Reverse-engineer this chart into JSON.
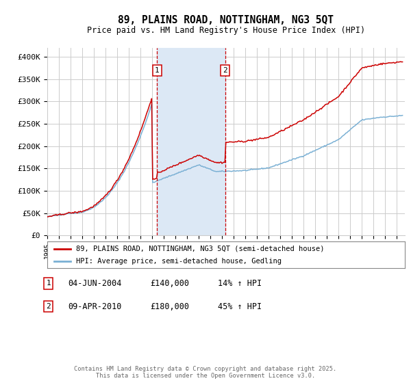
{
  "title": "89, PLAINS ROAD, NOTTINGHAM, NG3 5QT",
  "subtitle": "Price paid vs. HM Land Registry's House Price Index (HPI)",
  "ylabel_ticks": [
    "£0",
    "£50K",
    "£100K",
    "£150K",
    "£200K",
    "£250K",
    "£300K",
    "£350K",
    "£400K"
  ],
  "ytick_values": [
    0,
    50000,
    100000,
    150000,
    200000,
    250000,
    300000,
    350000,
    400000
  ],
  "ylim": [
    0,
    420000
  ],
  "xlim_start": 1995.0,
  "xlim_end": 2025.7,
  "red_line_color": "#cc0000",
  "blue_line_color": "#7ab0d4",
  "purchase1_date": 2004.42,
  "purchase1_price": 140000,
  "purchase1_label": "1",
  "purchase2_date": 2010.27,
  "purchase2_price": 180000,
  "purchase2_label": "2",
  "shaded_region_start": 2004.42,
  "shaded_region_end": 2010.27,
  "shaded_color": "#dce8f5",
  "grid_color": "#cccccc",
  "bg_color": "#ffffff",
  "legend_line1": "89, PLAINS ROAD, NOTTINGHAM, NG3 5QT (semi-detached house)",
  "legend_line2": "HPI: Average price, semi-detached house, Gedling",
  "note1_label": "1",
  "note1_date": "04-JUN-2004",
  "note1_price": "£140,000",
  "note1_change": "14% ↑ HPI",
  "note2_label": "2",
  "note2_date": "09-APR-2010",
  "note2_price": "£180,000",
  "note2_change": "45% ↑ HPI",
  "footer": "Contains HM Land Registry data © Crown copyright and database right 2025.\nThis data is licensed under the Open Government Licence v3.0."
}
